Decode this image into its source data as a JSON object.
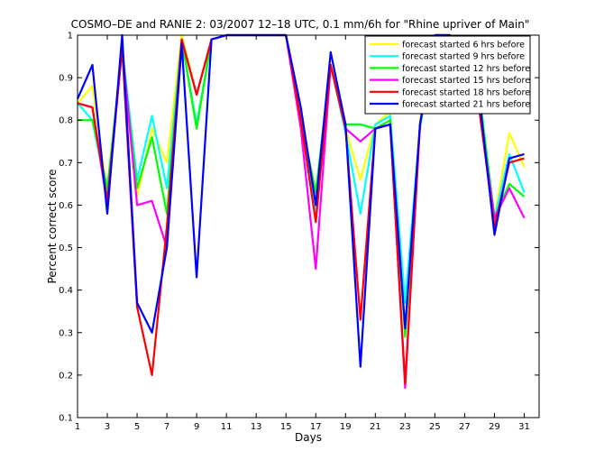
{
  "chart_data": {
    "type": "line",
    "title": "COSMO–DE and RANIE 2: 03/2007 12–18 UTC, 0.1 mm/6h for \"Rhine upriver of Main\"",
    "xlabel": "Days",
    "ylabel": "Percent correct score",
    "xlim": [
      1,
      32
    ],
    "ylim": [
      0.1,
      1.0
    ],
    "xticks": [
      1,
      3,
      5,
      7,
      9,
      11,
      13,
      15,
      17,
      19,
      21,
      23,
      25,
      27,
      29,
      31
    ],
    "yticks": [
      0.1,
      0.2,
      0.3,
      0.4,
      0.5,
      0.6,
      0.7,
      0.8,
      0.9,
      1.0
    ],
    "xtick_labels": [
      "1",
      "3",
      "5",
      "7",
      "9",
      "11",
      "13",
      "15",
      "17",
      "19",
      "21",
      "23",
      "25",
      "27",
      "29",
      "31"
    ],
    "ytick_labels": [
      "0.1",
      "0.2",
      "0.3",
      "0.4",
      "0.5",
      "0.6",
      "0.7",
      "0.8",
      "0.9",
      "1"
    ],
    "grid": false,
    "legend_position": "top-right",
    "x": [
      1,
      2,
      3,
      4,
      5,
      6,
      7,
      8,
      9,
      10,
      11,
      12,
      13,
      14,
      15,
      16,
      17,
      18,
      19,
      20,
      21,
      22,
      23,
      24,
      25,
      26,
      27,
      28,
      29,
      30,
      31
    ],
    "series": [
      {
        "name": "forecast started 6 hrs before",
        "color": "#ffff00",
        "values": [
          0.84,
          0.88,
          0.63,
          0.98,
          0.62,
          0.78,
          0.7,
          1.0,
          0.86,
          0.99,
          1.0,
          1.0,
          1.0,
          1.0,
          1.0,
          0.8,
          0.63,
          0.93,
          0.78,
          0.66,
          0.79,
          0.82,
          0.3,
          0.8,
          1.0,
          1.0,
          0.9,
          0.86,
          0.57,
          0.77,
          0.69
        ]
      },
      {
        "name": "forecast started 9 hrs before",
        "color": "#00ffff",
        "values": [
          0.84,
          0.8,
          0.62,
          0.97,
          0.66,
          0.81,
          0.64,
          0.99,
          0.79,
          0.99,
          1.0,
          1.0,
          1.0,
          1.0,
          1.0,
          0.8,
          0.58,
          0.93,
          0.77,
          0.58,
          0.79,
          0.81,
          0.37,
          0.78,
          1.0,
          1.0,
          0.9,
          0.86,
          0.57,
          0.72,
          0.63
        ]
      },
      {
        "name": "forecast started 12 hrs before",
        "color": "#00ff00",
        "values": [
          0.8,
          0.8,
          0.64,
          0.96,
          0.64,
          0.76,
          0.58,
          0.99,
          0.78,
          0.99,
          1.0,
          1.0,
          1.0,
          1.0,
          1.0,
          0.8,
          0.63,
          0.93,
          0.79,
          0.79,
          0.78,
          0.8,
          0.29,
          0.79,
          1.0,
          1.0,
          0.9,
          0.86,
          0.57,
          0.65,
          0.62
        ]
      },
      {
        "name": "forecast started 15 hrs before",
        "color": "#ff00ff",
        "values": [
          0.84,
          0.83,
          0.6,
          0.97,
          0.6,
          0.61,
          0.5,
          0.99,
          0.86,
          0.99,
          1.0,
          1.0,
          1.0,
          1.0,
          1.0,
          0.78,
          0.45,
          0.93,
          0.78,
          0.75,
          0.78,
          0.79,
          0.17,
          0.79,
          1.0,
          1.0,
          0.9,
          0.82,
          0.57,
          0.64,
          0.57
        ]
      },
      {
        "name": "forecast started 18 hrs before",
        "color": "#ff0000",
        "values": [
          0.84,
          0.83,
          0.61,
          0.97,
          0.36,
          0.2,
          0.55,
          0.99,
          0.86,
          0.99,
          1.0,
          1.0,
          1.0,
          1.0,
          1.0,
          0.8,
          0.56,
          0.93,
          0.78,
          0.33,
          0.78,
          0.79,
          0.18,
          0.79,
          1.0,
          1.0,
          0.9,
          0.82,
          0.55,
          0.7,
          0.71
        ]
      },
      {
        "name": "forecast started 21 hrs before",
        "color": "#0000ff",
        "values": [
          0.85,
          0.93,
          0.58,
          1.0,
          0.37,
          0.3,
          0.5,
          0.98,
          0.43,
          0.99,
          1.0,
          1.0,
          1.0,
          1.0,
          1.0,
          0.83,
          0.6,
          0.96,
          0.79,
          0.22,
          0.78,
          0.79,
          0.31,
          0.79,
          1.0,
          1.0,
          0.88,
          0.85,
          0.53,
          0.71,
          0.72
        ]
      }
    ]
  }
}
